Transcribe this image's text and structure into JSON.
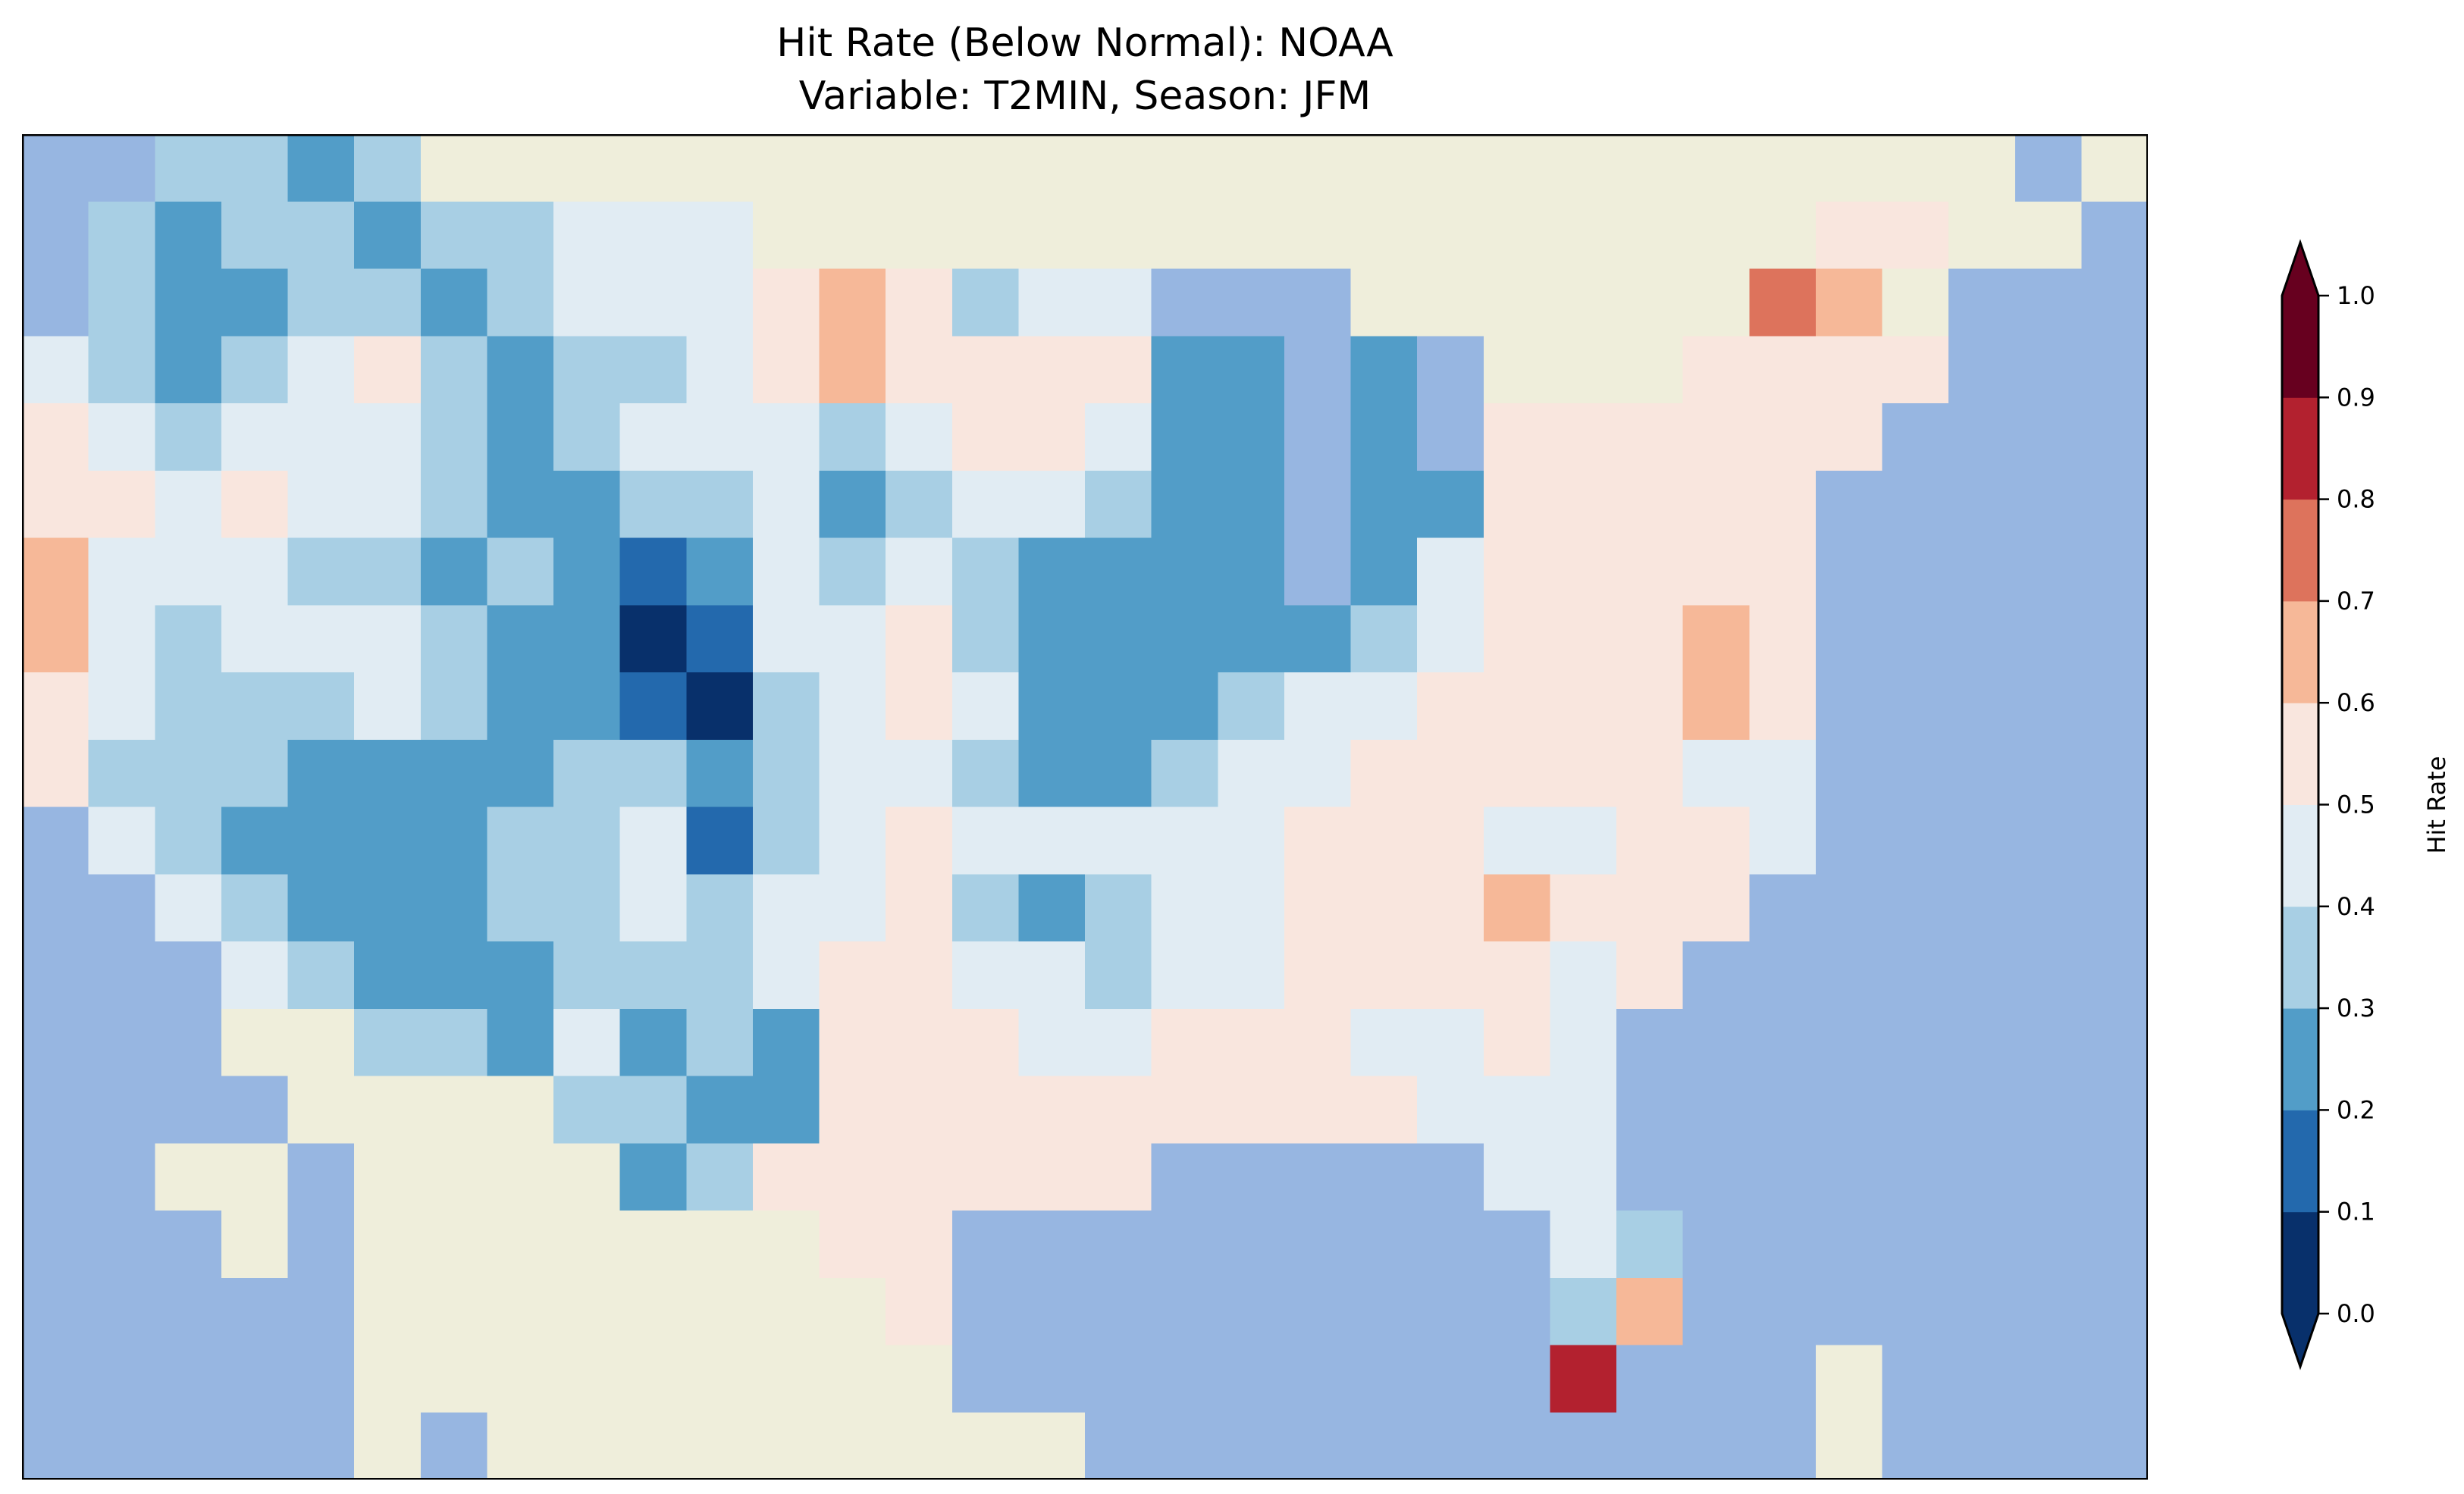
{
  "chart_data": {
    "type": "heatmap",
    "title_line1": "Hit Rate (Below Normal): NOAA",
    "title_line2": "Variable: T2MIN, Season: JFM",
    "colorbar": {
      "label": "Hit Rate",
      "ticks": [
        "0.0",
        "0.1",
        "0.2",
        "0.3",
        "0.4",
        "0.5",
        "0.6",
        "0.7",
        "0.8",
        "0.9",
        "1.0"
      ],
      "range": [
        0.0,
        1.0
      ],
      "extend": "both",
      "bin_colors": [
        "#08306b",
        "#2369ad",
        "#529dc8",
        "#a8cfe4",
        "#e1ecf3",
        "#f9e6de",
        "#f6b898",
        "#dd735c",
        "#b3212f",
        "#67001f"
      ]
    },
    "background_colors": {
      "ocean": "#97b6e1",
      "land": "#efeedb"
    },
    "grid_legend": "digit = hit-rate bin index (0 = 0.0-0.1 ... 9 = 0.9-1.0), o = ocean/lake, l = non-US land",
    "grid": [
      "oo3323llllllllllllllllllllllllol",
      "o3233233444llllllllllllllll55llo",
      "o3223323444565344ooollllll76looo",
      "4323453233456555522o2olll5555ooo",
      "5434443234443455422o2o555555oooo",
      "5545443223342344322o2255555ooooo",
      "6444332321243432222o2455555ooooo",
      "643444322014453222223455565ooooo",
      "543334322103454222344555565ooooo",
      "533322223323443223445555544ooooo",
      "o43222233413454444455544554ooooo",
      "oo4322233434453234455565 55oooooo",
      "ooo43222333455443445555 45ooooooo",
      "oooll3324232555445554454oooooooo",
      "oooollll3322555555555444oooooooo",
      "oollollll23555555ooooo44ooooooo",
      "ooololllllll55ooooooooo43ooooooo",
      "ooooollllllll5ooooooooo36oooooo",
      "ooooolllllllllooooooooo8oooloooo",
      "ooooololllllllllooooooooooolooooo"
    ]
  }
}
